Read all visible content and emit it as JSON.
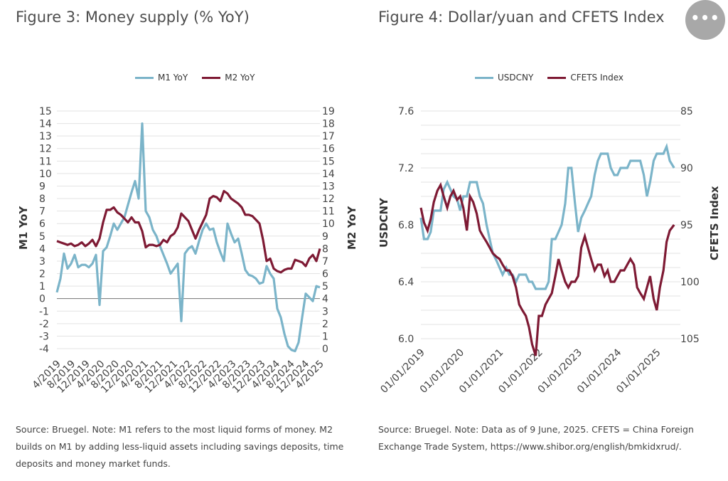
{
  "figure3": {
    "title": "Figure 3: Money supply (% YoY)",
    "source": "Source: Bruegel. Note: M1 refers to the most liquid forms of money. M2 builds on M1 by adding less-liquid assets including savings deposits, time deposits and money market funds."
  },
  "figure4": {
    "title": "Figure 4: Dollar/yuan and CFETS Index",
    "source": "Source: Bruegel. Note: Data as of 9 June, 2025. CFETS = China Foreign Exchange Trade System, https://www.shibor.org/english/bmkidxrud/."
  },
  "more_button": {
    "label": "•••"
  },
  "colors": {
    "m1": "#7bb4c9",
    "m2": "#7e1a34",
    "usdcny": "#7bb4c9",
    "cfets": "#7e1a34",
    "grid": "#e3e3e3",
    "zero_line": "#777777"
  },
  "chart_data": [
    {
      "type": "line",
      "title": "Figure 3: Money supply (% YoY)",
      "ylabel": "M1 YoY",
      "y2label": "M2 YoY",
      "ylim": [
        -4,
        15
      ],
      "y2lim": [
        0,
        19
      ],
      "y_ticks": [
        "15",
        "14",
        "13",
        "12",
        "11",
        "10",
        "9",
        "8",
        "7",
        "6",
        "5",
        "4",
        "3",
        "2",
        "1",
        "0",
        "-1",
        "-2",
        "-3",
        "-4"
      ],
      "y2_ticks": [
        "19",
        "18",
        "17",
        "16",
        "15",
        "14",
        "13",
        "12",
        "11",
        "10",
        "9",
        "8",
        "7",
        "6",
        "5",
        "4",
        "3",
        "2",
        "1",
        "0"
      ],
      "x_ticks": [
        "4/2019",
        "8/2019",
        "12/2019",
        "4/2020",
        "8/2020",
        "12/2020",
        "4/2021",
        "8/2021",
        "12/2021",
        "4/2022",
        "8/2022",
        "12/2022",
        "4/2023",
        "8/2023",
        "12/2023",
        "4/2024",
        "8/2024",
        "12/2024",
        "4/2025"
      ],
      "legend": "top-center",
      "series": [
        {
          "name": "M1 YoY",
          "axis": "left",
          "values": [
            0.5,
            1.6,
            3.6,
            2.4,
            2.8,
            3.5,
            2.5,
            2.7,
            2.7,
            2.5,
            2.8,
            3.5,
            -0.5,
            3.8,
            4.1,
            5.0,
            6.0,
            5.5,
            6.0,
            6.5,
            7.5,
            8.5,
            9.4,
            8.0,
            14.0,
            7.0,
            6.5,
            5.5,
            5.0,
            4.2,
            3.5,
            2.8,
            2.0,
            2.4,
            2.8,
            -1.8,
            3.6,
            4.0,
            4.2,
            3.6,
            4.6,
            5.5,
            6.0,
            5.5,
            5.6,
            4.5,
            3.7,
            3.0,
            6.0,
            5.2,
            4.5,
            4.8,
            3.6,
            2.3,
            1.9,
            1.8,
            1.6,
            1.2,
            1.3,
            2.6,
            2.0,
            1.6,
            -0.8,
            -1.5,
            -2.8,
            -3.8,
            -4.1,
            -4.2,
            -3.5,
            -1.5,
            0.4,
            0.1,
            -0.2,
            1.0,
            0.9
          ]
        },
        {
          "name": "M2 YoY",
          "axis": "right",
          "values": [
            8.6,
            8.5,
            8.4,
            8.3,
            8.4,
            8.2,
            8.3,
            8.5,
            8.2,
            8.4,
            8.7,
            8.2,
            8.8,
            10.1,
            11.1,
            11.1,
            11.3,
            10.9,
            10.7,
            10.4,
            10.1,
            10.5,
            10.1,
            10.1,
            9.4,
            8.1,
            8.3,
            8.3,
            8.2,
            8.3,
            8.7,
            8.5,
            9.0,
            9.2,
            9.7,
            10.8,
            10.5,
            10.2,
            9.5,
            8.8,
            9.5,
            10.1,
            10.7,
            12.0,
            12.2,
            12.1,
            11.8,
            12.6,
            12.4,
            12.0,
            11.8,
            11.6,
            11.3,
            10.7,
            10.7,
            10.6,
            10.3,
            10.0,
            8.7,
            7.0,
            7.2,
            6.4,
            6.2,
            6.1,
            6.3,
            6.4,
            6.4,
            7.1,
            7.0,
            6.9,
            6.6,
            7.2,
            7.5,
            7.0,
            8.0
          ]
        }
      ]
    },
    {
      "type": "line",
      "title": "Figure 4: Dollar/yuan and CFETS Index",
      "ylabel": "USDCNY",
      "y2label": "CFETS Index",
      "ylim": [
        6.0,
        7.6
      ],
      "y2lim": [
        85,
        105
      ],
      "y2_inverted": true,
      "y_ticks": [
        "7.6",
        "7.2",
        "6.8",
        "6.4",
        "6.0"
      ],
      "y2_ticks": [
        "85",
        "90",
        "95",
        "100",
        "105"
      ],
      "x_ticks": [
        "01/01/2019",
        "01/01/2020",
        "01/01/2021",
        "01/01/2022",
        "01/01/2023",
        "01/01/2024",
        "01/01/2025"
      ],
      "xlim": [
        2019.0,
        2025.6
      ],
      "legend": "top-center",
      "series": [
        {
          "name": "USDCNY",
          "axis": "left",
          "x": [
            2019.0,
            2019.08,
            2019.17,
            2019.25,
            2019.33,
            2019.42,
            2019.5,
            2019.58,
            2019.67,
            2019.75,
            2019.83,
            2019.92,
            2020.0,
            2020.08,
            2020.17,
            2020.25,
            2020.33,
            2020.42,
            2020.5,
            2020.58,
            2020.67,
            2020.75,
            2020.83,
            2020.92,
            2021.0,
            2021.08,
            2021.17,
            2021.25,
            2021.33,
            2021.42,
            2021.5,
            2021.58,
            2021.67,
            2021.75,
            2021.83,
            2021.92,
            2022.0,
            2022.08,
            2022.17,
            2022.25,
            2022.33,
            2022.42,
            2022.5,
            2022.58,
            2022.67,
            2022.75,
            2022.83,
            2022.92,
            2023.0,
            2023.08,
            2023.17,
            2023.25,
            2023.33,
            2023.42,
            2023.5,
            2023.58,
            2023.67,
            2023.75,
            2023.83,
            2023.92,
            2024.0,
            2024.08,
            2024.17,
            2024.25,
            2024.33,
            2024.42,
            2024.5,
            2024.58,
            2024.67,
            2024.75,
            2024.83,
            2024.92,
            2025.0,
            2025.08,
            2025.17,
            2025.25,
            2025.33,
            2025.44
          ],
          "values": [
            6.85,
            6.7,
            6.7,
            6.75,
            6.9,
            6.9,
            6.9,
            7.05,
            7.1,
            7.05,
            7.0,
            6.98,
            6.9,
            7.0,
            7.0,
            7.1,
            7.1,
            7.1,
            7.0,
            6.95,
            6.8,
            6.7,
            6.6,
            6.55,
            6.5,
            6.45,
            6.5,
            6.45,
            6.45,
            6.4,
            6.45,
            6.45,
            6.45,
            6.4,
            6.4,
            6.35,
            6.35,
            6.35,
            6.35,
            6.4,
            6.7,
            6.7,
            6.75,
            6.8,
            6.95,
            7.2,
            7.2,
            6.95,
            6.75,
            6.85,
            6.9,
            6.95,
            7.0,
            7.15,
            7.25,
            7.3,
            7.3,
            7.3,
            7.2,
            7.15,
            7.15,
            7.2,
            7.2,
            7.2,
            7.25,
            7.25,
            7.25,
            7.25,
            7.15,
            7.0,
            7.1,
            7.25,
            7.3,
            7.3,
            7.3,
            7.35,
            7.25,
            7.2
          ]
        },
        {
          "name": "CFETS Index",
          "axis": "right",
          "x": [
            2019.0,
            2019.08,
            2019.17,
            2019.25,
            2019.33,
            2019.42,
            2019.5,
            2019.58,
            2019.67,
            2019.75,
            2019.83,
            2019.92,
            2020.0,
            2020.08,
            2020.17,
            2020.25,
            2020.33,
            2020.42,
            2020.5,
            2020.58,
            2020.67,
            2020.75,
            2020.83,
            2020.92,
            2021.0,
            2021.08,
            2021.17,
            2021.25,
            2021.33,
            2021.42,
            2021.5,
            2021.58,
            2021.67,
            2021.75,
            2021.83,
            2021.92,
            2022.0,
            2022.08,
            2022.17,
            2022.25,
            2022.33,
            2022.42,
            2022.5,
            2022.58,
            2022.67,
            2022.75,
            2022.83,
            2022.92,
            2023.0,
            2023.08,
            2023.17,
            2023.25,
            2023.33,
            2023.42,
            2023.5,
            2023.58,
            2023.67,
            2023.75,
            2023.83,
            2023.92,
            2024.0,
            2024.08,
            2024.17,
            2024.25,
            2024.33,
            2024.42,
            2024.5,
            2024.58,
            2024.67,
            2024.75,
            2024.83,
            2024.92,
            2025.0,
            2025.08,
            2025.17,
            2025.25,
            2025.33,
            2025.44
          ],
          "values": [
            93.5,
            94.8,
            95.5,
            94.5,
            93.0,
            92.0,
            91.5,
            92.5,
            93.5,
            92.5,
            92.0,
            92.8,
            92.5,
            93.5,
            95.5,
            92.5,
            93.0,
            94.0,
            95.5,
            96.0,
            96.5,
            97.0,
            97.5,
            97.8,
            98.0,
            98.5,
            99.0,
            99.0,
            99.5,
            100.5,
            102.0,
            102.5,
            103.0,
            104.0,
            105.5,
            106.5,
            103.0,
            103.0,
            102.0,
            101.5,
            101.0,
            99.5,
            98.0,
            99.0,
            100.0,
            100.5,
            100.0,
            100.0,
            99.5,
            97.0,
            96.0,
            97.0,
            98.0,
            99.0,
            98.5,
            98.5,
            99.5,
            99.0,
            100.0,
            100.0,
            99.5,
            99.0,
            99.0,
            98.5,
            98.0,
            98.5,
            100.5,
            101.0,
            101.5,
            100.5,
            99.5,
            101.5,
            102.5,
            100.5,
            99.0,
            96.5,
            95.5,
            95.0
          ]
        }
      ]
    }
  ]
}
